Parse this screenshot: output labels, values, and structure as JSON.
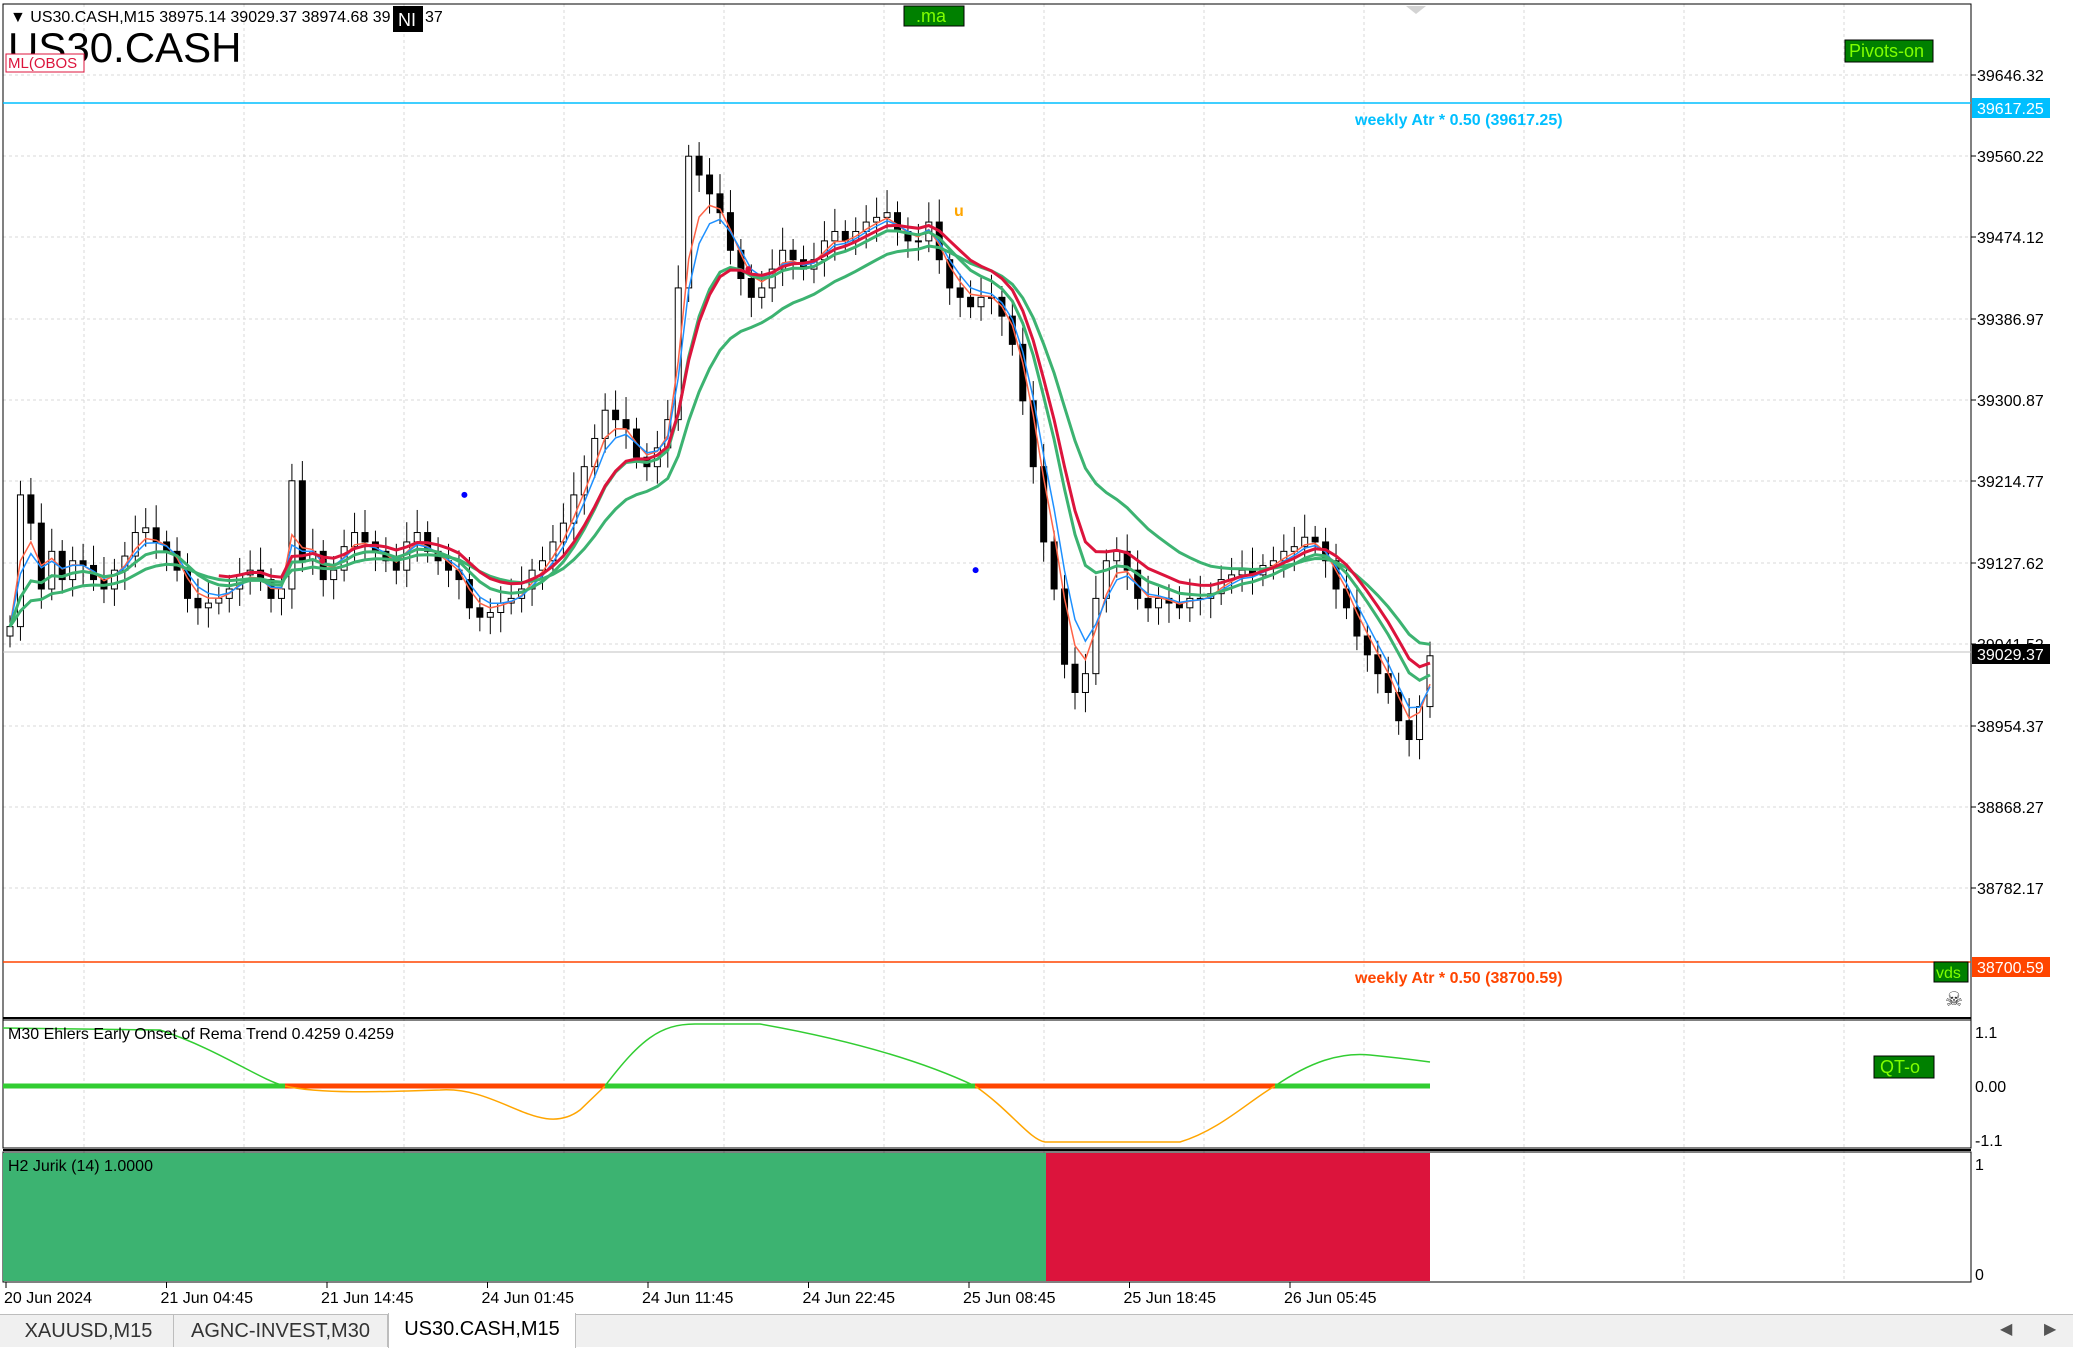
{
  "symbol_header": {
    "info": "▼ US30.CASH,M15  38975.14 39029.37 38974.68 39",
    "badge_text": "NI",
    "info_tail": "37",
    "big_title": "US30.CASH",
    "obos_label": "ML(OBOS"
  },
  "buttons": {
    "ma": ".ma",
    "pivots": "Pivots-on",
    "qt": "QT-o",
    "vds": "vds"
  },
  "main_axis": {
    "ticks": [
      "39646.32",
      "39560.22",
      "39474.12",
      "39386.97",
      "39300.87",
      "39214.77",
      "39127.62",
      "39041.52",
      "38954.37",
      "38868.27",
      "38782.17"
    ],
    "current_price": "39029.37",
    "upper_atr_price": "39617.25",
    "lower_atr_price": "38700.59"
  },
  "annotations": {
    "upper_atr_label": "weekly Atr * 0.50 (39617.25)",
    "lower_atr_label": "weekly Atr * 0.50 (38700.59)",
    "marker_u": "u",
    "skull": "☠"
  },
  "indicator1": {
    "label": "M30 Ehlers Early Onset of Rema Trend 0.4259 0.4259",
    "ticks": [
      "1.1",
      "0.00",
      "-1.1"
    ]
  },
  "indicator2": {
    "label": "H2 Jurik (14) 1.0000",
    "ticks": [
      "1",
      "0"
    ]
  },
  "time_axis": [
    "20 Jun 2024",
    "21 Jun 04:45",
    "21 Jun 14:45",
    "24 Jun 01:45",
    "24 Jun 11:45",
    "24 Jun 22:45",
    "25 Jun 08:45",
    "25 Jun 18:45",
    "26 Jun 05:45"
  ],
  "tabs": [
    {
      "label": "XAUUSD,M15",
      "active": false
    },
    {
      "label": "AGNC-INVEST,M30",
      "active": false
    },
    {
      "label": "US30.CASH,M15",
      "active": true
    }
  ],
  "colors": {
    "bull_fill": "#3cb371",
    "bear_fill": "#dc143c",
    "green_line": "#3cb371",
    "red_line": "#dc143c",
    "blue_line": "#1e90ff",
    "orange_line": "#ff6347",
    "atr_upper": "#00bfff",
    "atr_lower": "#ff4500",
    "osc_green": "#32cd32",
    "osc_orange": "#ffa500",
    "osc_zero_red": "#ff4500",
    "button_green": "#008000"
  },
  "chart_data": {
    "type": "line",
    "price_close": [
      39060,
      39200,
      39170,
      39100,
      39140,
      39110,
      39130,
      39125,
      39110,
      39100,
      39120,
      39135,
      39160,
      39165,
      39150,
      39140,
      39120,
      39090,
      39080,
      39085,
      39090,
      39100,
      39115,
      39120,
      39110,
      39090,
      39100,
      39215,
      39130,
      39140,
      39110,
      39120,
      39145,
      39160,
      39150,
      39140,
      39130,
      39120,
      39150,
      39160,
      39140,
      39130,
      39120,
      39110,
      39080,
      39070,
      39075,
      39085,
      39090,
      39100,
      39120,
      39130,
      39150,
      39170,
      39200,
      39230,
      39260,
      39290,
      39280,
      39270,
      39240,
      39230,
      39250,
      39280,
      39420,
      39560,
      39540,
      39520,
      39500,
      39460,
      39430,
      39410,
      39420,
      39440,
      39460,
      39450,
      39440,
      39450,
      39470,
      39480,
      39470,
      39480,
      39490,
      39495,
      39500,
      39480,
      39470,
      39470,
      39490,
      39450,
      39420,
      39410,
      39400,
      39410,
      39410,
      39390,
      39360,
      39300,
      39230,
      39150,
      39100,
      39020,
      38990,
      39010,
      39090,
      39130,
      39140,
      39120,
      39090,
      39080,
      39090,
      39085,
      39080,
      39090,
      39090,
      39095,
      39110,
      39115,
      39120,
      39115,
      39125,
      39130,
      39140,
      39145,
      39155,
      39150,
      39130,
      39100,
      39080,
      39050,
      39030,
      39010,
      38990,
      38960,
      38940,
      38975,
      39029
    ]
  }
}
